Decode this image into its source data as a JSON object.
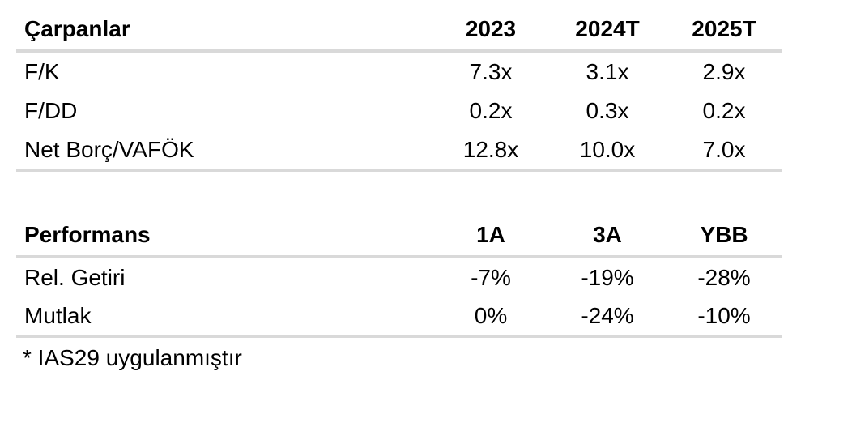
{
  "page": {
    "background": "#ffffff",
    "text_color": "#000000",
    "rule_color": "#d9d9d9"
  },
  "tables": [
    {
      "name": "carpanlar",
      "header": {
        "label": "Çarpanlar",
        "columns": [
          "2023",
          "2024T",
          "2025T"
        ]
      },
      "rows": [
        {
          "label": "F/K",
          "values": [
            "7.3x",
            "3.1x",
            "2.9x"
          ]
        },
        {
          "label": "F/DD",
          "values": [
            "0.2x",
            "0.3x",
            "0.2x"
          ]
        },
        {
          "label": "Net Borç/VAFÖK",
          "values": [
            "12.8x",
            "10.0x",
            "7.0x"
          ]
        }
      ]
    },
    {
      "name": "performans",
      "header": {
        "label": "Performans",
        "columns": [
          "1A",
          "3A",
          "YBB"
        ]
      },
      "rows": [
        {
          "label": "Rel. Getiri",
          "values": [
            "-7%",
            "-19%",
            "-28%"
          ]
        },
        {
          "label": "Mutlak",
          "values": [
            "0%",
            "-24%",
            "-10%"
          ]
        }
      ]
    }
  ],
  "footnote": "* IAS29 uygulanmıştır"
}
